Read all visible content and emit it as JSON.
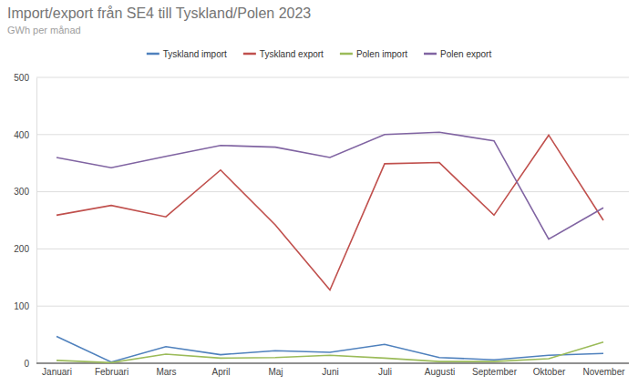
{
  "chart_data": {
    "type": "line",
    "title": "Import/export från SE4 till Tyskland/Polen 2023",
    "subtitle": "GWh per månad",
    "categories": [
      "Januari",
      "Februari",
      "Mars",
      "April",
      "Maj",
      "Juni",
      "Juli",
      "Augusti",
      "September",
      "Oktober",
      "November"
    ],
    "series": [
      {
        "name": "Tyskland import",
        "color": "#4f81bd",
        "values": [
          47,
          2,
          29,
          15,
          22,
          19,
          33,
          10,
          6,
          14,
          17
        ]
      },
      {
        "name": "Tyskland export",
        "color": "#c0504d",
        "values": [
          259,
          276,
          256,
          338,
          242,
          128,
          349,
          351,
          259,
          399,
          250
        ]
      },
      {
        "name": "Polen import",
        "color": "#9bbb59",
        "values": [
          5,
          1,
          16,
          9,
          10,
          14,
          9,
          3,
          3,
          8,
          37
        ]
      },
      {
        "name": "Polen export",
        "color": "#8064a2",
        "values": [
          360,
          342,
          362,
          381,
          378,
          360,
          400,
          404,
          389,
          217,
          272
        ]
      }
    ],
    "ylim": [
      0,
      500
    ],
    "yticks": [
      0,
      100,
      200,
      300,
      400,
      500
    ],
    "grid": true,
    "legend": "top",
    "marker": "none"
  }
}
